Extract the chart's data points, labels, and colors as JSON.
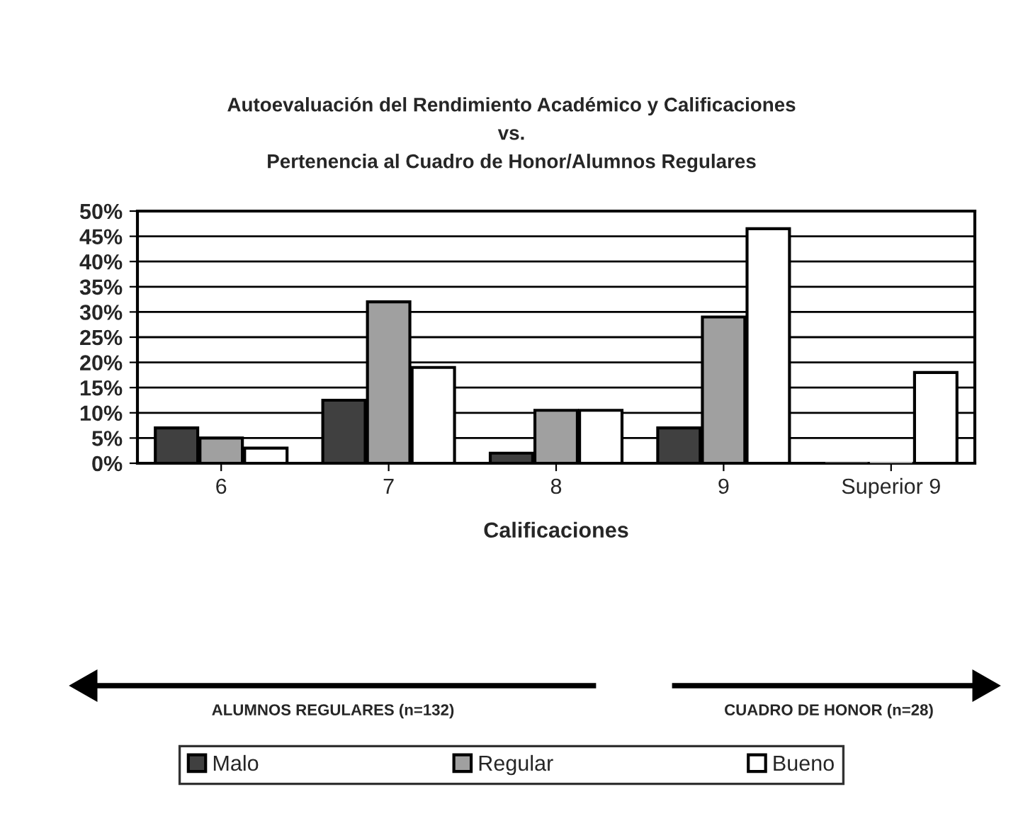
{
  "chart_data": {
    "type": "bar",
    "title": "Autoevaluación del Rendimiento Académico y Calificaciones\nvs.\nPertenencia al Cuadro de Honor/Alumnos Regulares",
    "xlabel": "Calificaciones",
    "categories": [
      "6",
      "7",
      "8",
      "9",
      "Superior 9"
    ],
    "series": [
      {
        "name": "Malo",
        "color": "#404040",
        "values": [
          7,
          12.5,
          2,
          7,
          0
        ]
      },
      {
        "name": "Regular",
        "color": "#a0a0a0",
        "values": [
          5,
          32,
          10.5,
          29,
          0
        ]
      },
      {
        "name": "Bueno",
        "color": "#ffffff",
        "values": [
          3,
          19,
          10.5,
          46.5,
          18
        ]
      }
    ],
    "ylim": [
      0,
      50
    ],
    "yticks": [
      {
        "value": 0,
        "label": "0%"
      },
      {
        "value": 5,
        "label": "5%"
      },
      {
        "value": 10,
        "label": "10%"
      },
      {
        "value": 15,
        "label": "15%"
      },
      {
        "value": 20,
        "label": "20%"
      },
      {
        "value": 25,
        "label": "25%"
      },
      {
        "value": 30,
        "label": "30%"
      },
      {
        "value": 35,
        "label": "35%"
      },
      {
        "value": 40,
        "label": "40%"
      },
      {
        "value": 45,
        "label": "45%"
      },
      {
        "value": 50,
        "label": "50%"
      }
    ],
    "grid": "y",
    "legend": "bottom",
    "annotations": [
      "ALUMNOS REGULARES (n=132)",
      "CUADRO DE HONOR (n=28)"
    ]
  }
}
